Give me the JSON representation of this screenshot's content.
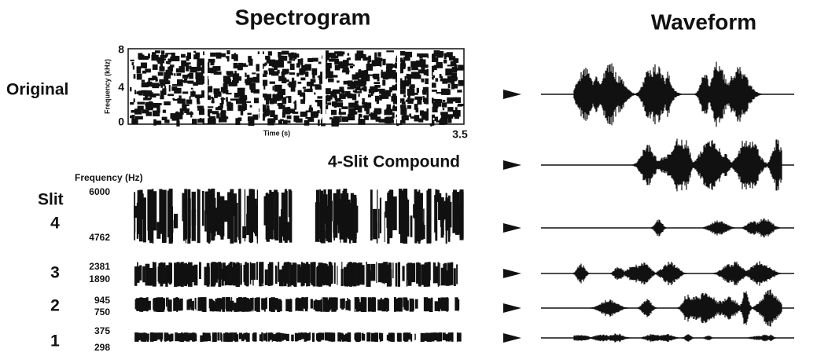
{
  "titles": {
    "spectrogram": "Spectrogram",
    "waveform": "Waveform"
  },
  "original": {
    "label": "Original",
    "y_axis_label": "Frequency (kHz)",
    "y_ticks": [
      "8",
      "4",
      "0"
    ],
    "x_axis_label": "Time (s)",
    "x_end": "3.5"
  },
  "compound_label": "4-Slit Compound",
  "slits": {
    "axis_label": "Frequency (Hz)",
    "header": "Slit",
    "rows": [
      {
        "slit": "4",
        "upper": "6000",
        "lower": "4762"
      },
      {
        "slit": "3",
        "upper": "2381",
        "lower": "1890"
      },
      {
        "slit": "2",
        "upper": "945",
        "lower": "750"
      },
      {
        "slit": "1",
        "upper": "375",
        "lower": "298"
      }
    ]
  }
}
